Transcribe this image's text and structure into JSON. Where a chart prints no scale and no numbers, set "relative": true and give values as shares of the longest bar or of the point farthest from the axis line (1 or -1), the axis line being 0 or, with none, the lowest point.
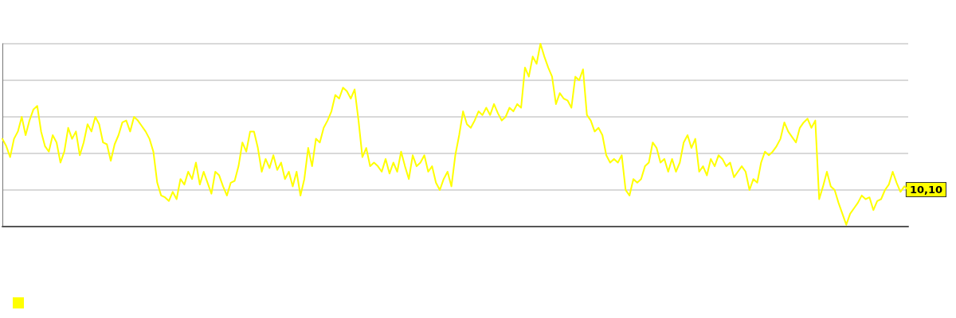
{
  "chart_data": {
    "type": "line",
    "categories": [
      null,
      null,
      null,
      null,
      null,
      null,
      null,
      null,
      null,
      null,
      null,
      null,
      null,
      null,
      null,
      null,
      null,
      null,
      null,
      null,
      null,
      null,
      null,
      null,
      null,
      null,
      null,
      null,
      null,
      null,
      null,
      null,
      null,
      null,
      null,
      null,
      null,
      null,
      null,
      null,
      null,
      null,
      null,
      null,
      null,
      null,
      null,
      null,
      null,
      null,
      null,
      null,
      null,
      null,
      null,
      null,
      null,
      null,
      null,
      null,
      null,
      null,
      null,
      null,
      null,
      null,
      null,
      null,
      null,
      null,
      null,
      null,
      null,
      null,
      null,
      null,
      null,
      null,
      null,
      null,
      null,
      null,
      null,
      null,
      null,
      null,
      null,
      null,
      null,
      null,
      null,
      null,
      null,
      null,
      null,
      null,
      null,
      null,
      null,
      null,
      null,
      null,
      null,
      null,
      null,
      null,
      null,
      null,
      null,
      null,
      null,
      null,
      null,
      null,
      null,
      null,
      null,
      null,
      null,
      null,
      null,
      null,
      null,
      null,
      null,
      null,
      null,
      null,
      null,
      null,
      null,
      null,
      null,
      null,
      null,
      null,
      null,
      null,
      null,
      null,
      null,
      null,
      null,
      null,
      null,
      null,
      null,
      null,
      null,
      null,
      null,
      null,
      null,
      null,
      null,
      null,
      null,
      null,
      null,
      null,
      null,
      null,
      null,
      null,
      null,
      null,
      null,
      null,
      null,
      null,
      null,
      null,
      null,
      null,
      null,
      null,
      null,
      null,
      null,
      null,
      null,
      null,
      null,
      null,
      null,
      null,
      null,
      null,
      null,
      null,
      null,
      null,
      null,
      null,
      null,
      null,
      null,
      null,
      null,
      null,
      null,
      null,
      null,
      null,
      null,
      null,
      null,
      null,
      null,
      null,
      null,
      null,
      null,
      null,
      null,
      null,
      null,
      null,
      null,
      null,
      null,
      null,
      null,
      null,
      null,
      null,
      null,
      null,
      null,
      null,
      null,
      null,
      null,
      null,
      null
    ],
    "series": [
      {
        "color": "#ffff00",
        "values": [
          0.48,
          0.44,
          0.38,
          0.48,
          0.52,
          0.6,
          0.5,
          0.58,
          0.64,
          0.66,
          0.52,
          0.44,
          0.41,
          0.5,
          0.46,
          0.35,
          0.41,
          0.54,
          0.48,
          0.52,
          0.39,
          0.46,
          0.56,
          0.52,
          0.6,
          0.56,
          0.46,
          0.45,
          0.36,
          0.45,
          0.5,
          0.57,
          0.58,
          0.52,
          0.6,
          0.58,
          0.55,
          0.52,
          0.48,
          0.41,
          0.24,
          0.17,
          0.16,
          0.14,
          0.19,
          0.15,
          0.26,
          0.23,
          0.3,
          0.26,
          0.35,
          0.23,
          0.3,
          0.24,
          0.18,
          0.3,
          0.28,
          0.22,
          0.17,
          0.24,
          0.25,
          0.33,
          0.46,
          0.41,
          0.52,
          0.52,
          0.43,
          0.3,
          0.37,
          0.32,
          0.39,
          0.31,
          0.35,
          0.26,
          0.3,
          0.22,
          0.3,
          0.17,
          0.26,
          0.43,
          0.33,
          0.48,
          0.46,
          0.54,
          0.58,
          0.63,
          0.72,
          0.7,
          0.76,
          0.74,
          0.7,
          0.75,
          0.58,
          0.38,
          0.43,
          0.33,
          0.35,
          0.33,
          0.3,
          0.37,
          0.29,
          0.35,
          0.3,
          0.41,
          0.33,
          0.26,
          0.39,
          0.33,
          0.35,
          0.39,
          0.3,
          0.33,
          0.24,
          0.2,
          0.26,
          0.3,
          0.22,
          0.39,
          0.5,
          0.63,
          0.56,
          0.54,
          0.58,
          0.63,
          0.61,
          0.65,
          0.61,
          0.67,
          0.62,
          0.58,
          0.6,
          0.65,
          0.63,
          0.67,
          0.65,
          0.87,
          0.82,
          0.93,
          0.89,
          1,
          0.93,
          0.87,
          0.82,
          0.67,
          0.73,
          0.7,
          0.69,
          0.65,
          0.82,
          0.8,
          0.86,
          0.61,
          0.58,
          0.52,
          0.54,
          0.5,
          0.39,
          0.35,
          0.37,
          0.35,
          0.39,
          0.2,
          0.17,
          0.26,
          0.24,
          0.26,
          0.33,
          0.35,
          0.46,
          0.43,
          0.35,
          0.37,
          0.3,
          0.37,
          0.3,
          0.35,
          0.46,
          0.5,
          0.43,
          0.48,
          0.3,
          0.33,
          0.28,
          0.37,
          0.33,
          0.39,
          0.37,
          0.33,
          0.35,
          0.27,
          0.3,
          0.33,
          0.3,
          0.2,
          0.26,
          0.24,
          0.35,
          0.41,
          0.39,
          0.41,
          0.44,
          0.48,
          0.57,
          0.52,
          0.49,
          0.46,
          0.54,
          0.57,
          0.59,
          0.54,
          0.58,
          0.15,
          0.22,
          0.3,
          0.22,
          0.2,
          0.13,
          0.07,
          0.01,
          0.07,
          0.1,
          0.13,
          0.17,
          0.15,
          0.16,
          0.09,
          0.14,
          0.15,
          0.2,
          0.23,
          0.3,
          0.24,
          0.19,
          0.22,
          0.2
        ]
      }
    ],
    "relative": true,
    "grid": "y",
    "marker": "none",
    "line_style": "solid",
    "annotations": [
      "10,10"
    ]
  }
}
